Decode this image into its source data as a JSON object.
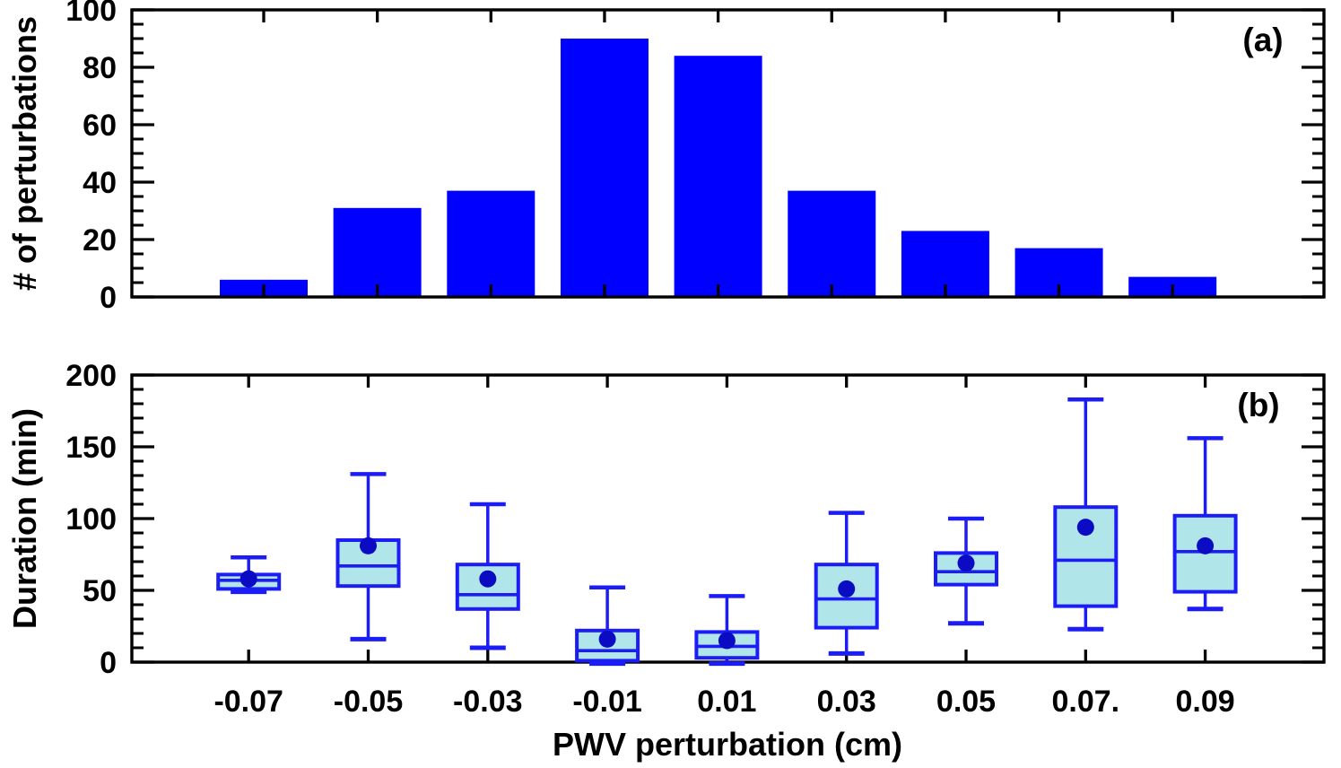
{
  "figure": {
    "background": "#ffffff",
    "x_axis_title": "PWV perturbation (cm)"
  },
  "colors": {
    "axis": "#000000",
    "bar_fill": "#0000ff",
    "box_fill": "#b0e5ea",
    "box_edge": "#1c1cf5",
    "whisker": "#1c1cf5",
    "mean_dot": "#0b0bc4"
  },
  "chart_data": [
    {
      "type": "bar",
      "panel": "a",
      "panel_label": "(a)",
      "title": "",
      "xlabel": "PWV perturbation (cm)",
      "ylabel": "# of perturbations",
      "categories": [
        "-0.07",
        "-0.05",
        "-0.03",
        "-0.01",
        "0.01",
        "0.03",
        "0.05",
        "0.07.",
        "0.09"
      ],
      "x_values": [
        -0.07,
        -0.05,
        -0.03,
        -0.01,
        0.01,
        0.03,
        0.05,
        0.07,
        0.09
      ],
      "values": [
        6,
        31,
        37,
        90,
        84,
        37,
        23,
        17,
        7
      ],
      "ylim": [
        0,
        100
      ],
      "yticks": [
        0,
        20,
        40,
        60,
        80,
        100
      ],
      "ytick_minor_step": 5,
      "grid": false,
      "legend": "none"
    },
    {
      "type": "boxplot",
      "panel": "b",
      "panel_label": "(b)",
      "title": "",
      "xlabel": "PWV perturbation (cm)",
      "ylabel": "Duration (min)",
      "categories": [
        "-0.07",
        "-0.05",
        "-0.03",
        "-0.01",
        "0.01",
        "0.03",
        "0.05",
        "0.07.",
        "0.09"
      ],
      "x_values": [
        -0.07,
        -0.05,
        -0.03,
        -0.01,
        0.01,
        0.03,
        0.05,
        0.07,
        0.09
      ],
      "ylim": [
        0,
        200
      ],
      "yticks": [
        0,
        50,
        100,
        150,
        200
      ],
      "ytick_minor_step": 10,
      "grid": false,
      "legend": "none",
      "boxes": [
        {
          "category": "-0.07",
          "whisker_low": 49,
          "q1": 51,
          "median": 57,
          "q3": 61,
          "whisker_high": 73,
          "mean": 58
        },
        {
          "category": "-0.05",
          "whisker_low": 16,
          "q1": 53,
          "median": 67,
          "q3": 85,
          "whisker_high": 131,
          "mean": 81
        },
        {
          "category": "-0.03",
          "whisker_low": 10,
          "q1": 37,
          "median": 47,
          "q3": 68,
          "whisker_high": 110,
          "mean": 58
        },
        {
          "category": "-0.01",
          "whisker_low": -1,
          "q1": 1,
          "median": 8,
          "q3": 22,
          "whisker_high": 52,
          "mean": 16
        },
        {
          "category": "0.01",
          "whisker_low": -1,
          "q1": 3,
          "median": 11,
          "q3": 21,
          "whisker_high": 46,
          "mean": 15
        },
        {
          "category": "0.03",
          "whisker_low": 6,
          "q1": 24,
          "median": 44,
          "q3": 68,
          "whisker_high": 104,
          "mean": 51
        },
        {
          "category": "0.05",
          "whisker_low": 27,
          "q1": 54,
          "median": 63,
          "q3": 76,
          "whisker_high": 100,
          "mean": 69
        },
        {
          "category": "0.07.",
          "whisker_low": 23,
          "q1": 39,
          "median": 71,
          "q3": 108,
          "whisker_high": 183,
          "mean": 94
        },
        {
          "category": "0.09",
          "whisker_low": 37,
          "q1": 49,
          "median": 77,
          "q3": 102,
          "whisker_high": 156,
          "mean": 81
        }
      ]
    }
  ]
}
